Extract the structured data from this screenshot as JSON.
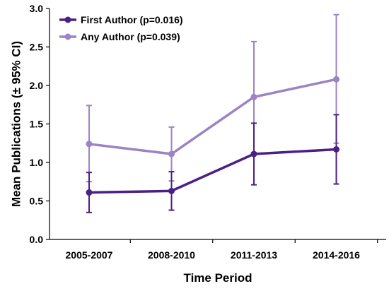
{
  "chart_data": {
    "type": "line",
    "title": "",
    "xlabel": "Time Period",
    "ylabel": "Mean Publications (± 95% CI)",
    "categories": [
      "2005-2007",
      "2008-2010",
      "2011-2013",
      "2014-2016"
    ],
    "ylim": [
      0.0,
      3.0
    ],
    "yticks": [
      "0.0",
      "0.5",
      "1.0",
      "1.5",
      "2.0",
      "2.5",
      "3.0"
    ],
    "grid": false,
    "legend_position": "top-left",
    "series": [
      {
        "name": "First Author (p=0.016)",
        "color": "#4b1f85",
        "values": [
          0.61,
          0.63,
          1.11,
          1.17
        ],
        "ci_low": [
          0.35,
          0.38,
          0.71,
          0.72
        ],
        "ci_high": [
          0.87,
          0.88,
          1.51,
          1.62
        ]
      },
      {
        "name": "Any Author (p=0.039)",
        "color": "#9c84c4",
        "values": [
          1.24,
          1.11,
          1.85,
          2.08
        ],
        "ci_low": [
          0.75,
          0.76,
          1.13,
          1.25
        ],
        "ci_high": [
          1.74,
          1.46,
          2.57,
          2.92
        ]
      }
    ]
  }
}
